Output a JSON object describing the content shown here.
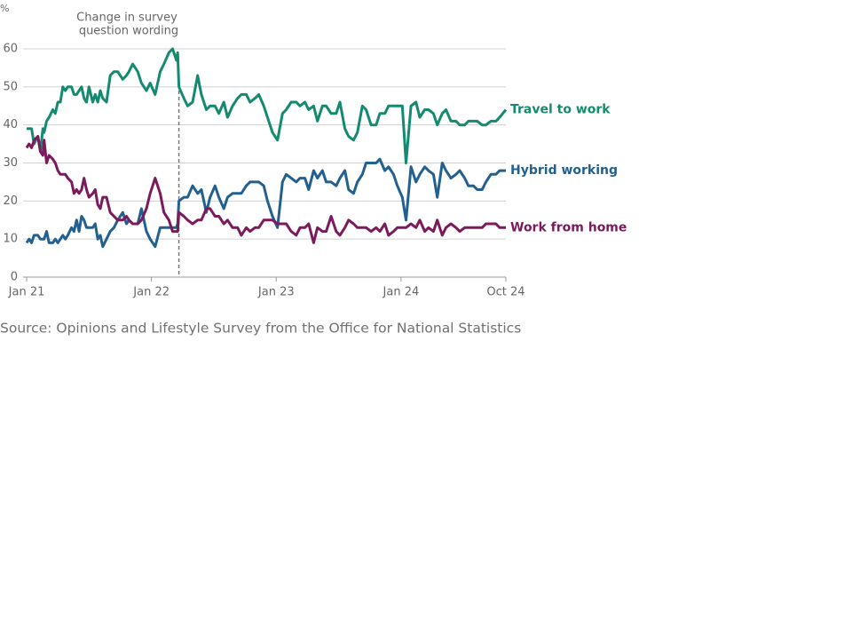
{
  "chart_data": {
    "type": "line",
    "y_unit": "%",
    "annotation": {
      "lines": [
        "Change in survey",
        "question wording"
      ],
      "x": 2022.22
    },
    "source": "Source: Opinions and Lifestyle Survey from the Office for National Statistics",
    "grid": true,
    "xlim": [
      2021,
      2024.84
    ],
    "xticks": [
      {
        "value": 2021,
        "label": "Jan 21"
      },
      {
        "value": 2022,
        "label": "Jan 22"
      },
      {
        "value": 2023,
        "label": "Jan 23"
      },
      {
        "value": 2024,
        "label": "Jan 24"
      },
      {
        "value": 2024.84,
        "label": "Oct 24"
      }
    ],
    "ylim": [
      0,
      60
    ],
    "yticks": [
      0,
      10,
      20,
      30,
      40,
      50,
      60
    ],
    "x": [
      2021.0,
      2021.02,
      2021.04,
      2021.06,
      2021.09,
      2021.11,
      2021.13,
      2021.14,
      2021.16,
      2021.18,
      2021.21,
      2021.23,
      2021.25,
      2021.27,
      2021.29,
      2021.31,
      2021.33,
      2021.36,
      2021.38,
      2021.4,
      2021.42,
      2021.44,
      2021.46,
      2021.48,
      2021.5,
      2021.53,
      2021.55,
      2021.57,
      2021.59,
      2021.61,
      2021.64,
      2021.67,
      2021.7,
      2021.73,
      2021.77,
      2021.8,
      2021.82,
      2021.85,
      2021.89,
      2021.92,
      2021.96,
      2021.99,
      2022.03,
      2022.07,
      2022.1,
      2022.14,
      2022.17,
      2022.2,
      2022.21,
      2022.22,
      2022.26,
      2022.29,
      2022.33,
      2022.37,
      2022.4,
      2022.44,
      2022.47,
      2022.51,
      2022.54,
      2022.58,
      2022.61,
      2022.65,
      2022.69,
      2022.72,
      2022.76,
      2022.79,
      2022.83,
      2022.86,
      2022.9,
      2022.93,
      2022.97,
      2023.01,
      2023.05,
      2023.08,
      2023.12,
      2023.16,
      2023.19,
      2023.23,
      2023.26,
      2023.3,
      2023.33,
      2023.37,
      2023.4,
      2023.44,
      2023.48,
      2023.51,
      2023.55,
      2023.58,
      2023.62,
      2023.65,
      2023.69,
      2023.72,
      2023.76,
      2023.8,
      2023.83,
      2023.87,
      2023.9,
      2023.94,
      2023.97,
      2024.01,
      2024.04,
      2024.08,
      2024.12,
      2024.15,
      2024.19,
      2024.22,
      2024.26,
      2024.29,
      2024.33,
      2024.36,
      2024.4,
      2024.44,
      2024.47,
      2024.51,
      2024.54,
      2024.58,
      2024.61,
      2024.65,
      2024.68,
      2024.72,
      2024.76,
      2024.79,
      2024.84
    ],
    "series": [
      {
        "name": "Travel to work",
        "color": "#148a70",
        "values": [
          39,
          39,
          39,
          35,
          37,
          33,
          39,
          38,
          41,
          42,
          44,
          43,
          46,
          46,
          50,
          49,
          50,
          50,
          48,
          48,
          49,
          50,
          47,
          46,
          50,
          46,
          48,
          46,
          49,
          47,
          46,
          53,
          54,
          54,
          52,
          53,
          54,
          56,
          54,
          51,
          49,
          51,
          48,
          54,
          56,
          59,
          60,
          57,
          59,
          50,
          47,
          45,
          46,
          53,
          48,
          44,
          45,
          45,
          43,
          46,
          42,
          45,
          47,
          48,
          48,
          46,
          47,
          48,
          45,
          42,
          38,
          36,
          43,
          44,
          46,
          46,
          45,
          46,
          44,
          45,
          41,
          45,
          45,
          43,
          43,
          46,
          39,
          37,
          36,
          38,
          45,
          44,
          40,
          40,
          43,
          43,
          45,
          45,
          45,
          45,
          30,
          45,
          46,
          42,
          44,
          44,
          43,
          40,
          43,
          44,
          41,
          41,
          40,
          40,
          41,
          41,
          41,
          40,
          40,
          41,
          41,
          42,
          44
        ]
      },
      {
        "name": "Hybrid working",
        "color": "#22608f",
        "values": [
          9,
          10,
          9,
          11,
          11,
          10,
          10,
          10,
          12,
          9,
          9,
          10,
          9,
          10,
          11,
          10,
          11,
          13,
          12,
          15,
          12,
          16,
          15,
          13,
          13,
          13,
          14,
          10,
          11,
          8,
          10,
          12,
          13,
          15,
          17,
          14,
          15,
          14,
          14,
          18,
          12,
          10,
          8,
          13,
          13,
          13,
          13,
          13,
          14,
          20,
          21,
          21,
          24,
          22,
          23,
          17,
          21,
          24,
          21,
          18,
          21,
          22,
          22,
          22,
          24,
          25,
          25,
          25,
          24,
          20,
          16,
          13,
          25,
          27,
          26,
          25,
          26,
          26,
          23,
          28,
          26,
          28,
          25,
          25,
          24,
          26,
          28,
          23,
          22,
          25,
          27,
          30,
          30,
          30,
          31,
          28,
          29,
          27,
          24,
          21,
          15,
          29,
          25,
          27,
          29,
          28,
          27,
          21,
          30,
          28,
          26,
          27,
          28,
          26,
          24,
          24,
          23,
          23,
          25,
          27,
          27,
          28,
          28
        ]
      },
      {
        "name": "Work from home",
        "color": "#7b1a5c",
        "values": [
          34,
          35,
          34,
          36,
          37,
          33,
          32,
          36,
          30,
          32,
          31,
          30,
          28,
          27,
          27,
          27,
          26,
          25,
          22,
          23,
          22,
          23,
          26,
          23,
          21,
          22,
          23,
          19,
          18,
          21,
          21,
          17,
          16,
          15,
          15,
          16,
          15,
          14,
          14,
          15,
          18,
          22,
          26,
          22,
          17,
          15,
          12,
          12,
          12,
          17,
          16,
          15,
          14,
          15,
          15,
          18,
          18,
          16,
          16,
          14,
          15,
          13,
          13,
          11,
          13,
          12,
          13,
          13,
          15,
          15,
          15,
          14,
          14,
          14,
          12,
          11,
          13,
          13,
          14,
          9,
          13,
          12,
          12,
          16,
          12,
          11,
          13,
          15,
          14,
          13,
          13,
          13,
          12,
          13,
          12,
          14,
          11,
          12,
          13,
          13,
          13,
          14,
          13,
          15,
          12,
          13,
          12,
          15,
          11,
          13,
          14,
          13,
          12,
          13,
          13,
          13,
          13,
          13,
          14,
          14,
          14,
          13,
          13
        ]
      }
    ]
  }
}
